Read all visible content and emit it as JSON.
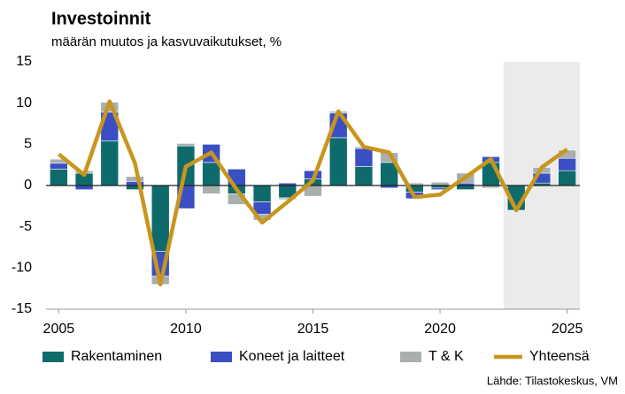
{
  "chart_data": {
    "type": "stacked_bar_line",
    "title": "Investoinnit",
    "subtitle": "määrän muutos ja kasvuvaikutukset, %",
    "source": "Lähde: Tilastokeskus, VM",
    "x": [
      2005,
      2006,
      2007,
      2008,
      2009,
      2010,
      2011,
      2012,
      2013,
      2014,
      2015,
      2016,
      2017,
      2018,
      2019,
      2020,
      2021,
      2022,
      2023,
      2024,
      2025
    ],
    "xlim": [
      2004.5,
      2025.5
    ],
    "xticks": [
      2005,
      2010,
      2015,
      2020,
      2025
    ],
    "ylim": [
      -15,
      15
    ],
    "yticks": [
      -15,
      -10,
      -5,
      0,
      5,
      10,
      15
    ],
    "shaded_region": [
      2022.5,
      2025.5
    ],
    "series": [
      {
        "name": "Rakentaminen",
        "color": "#0f6b6b",
        "kind": "bar",
        "values": [
          2,
          1.5,
          5.4,
          -0.5,
          -8,
          4.8,
          2.8,
          -1,
          -2,
          -1.5,
          0.8,
          5.8,
          2.3,
          2.8,
          -0.8,
          -0.3,
          -0.5,
          2.8,
          -3,
          0.3,
          1.8
        ]
      },
      {
        "name": "Koneet ja laitteet",
        "color": "#3b4fc4",
        "kind": "bar",
        "values": [
          0.7,
          -0.5,
          3.5,
          0.5,
          -3,
          -2.8,
          2.2,
          2,
          -1.5,
          0.3,
          1,
          3,
          2.2,
          -0.3,
          -0.8,
          -0.2,
          0.3,
          0.7,
          0,
          1.2,
          1.5
        ]
      },
      {
        "name": "T & K",
        "color": "#a9aeae",
        "kind": "bar",
        "values": [
          0.5,
          0.3,
          1.2,
          0.6,
          -1,
          0.3,
          -1,
          -1.3,
          -0.7,
          -0.2,
          -1.3,
          0.2,
          0.2,
          1.2,
          0.3,
          0.4,
          1.2,
          -0.3,
          0,
          0.7,
          1
        ]
      },
      {
        "name": "Yhteensä",
        "color": "#c8961e",
        "kind": "line",
        "values": [
          3.8,
          1.3,
          10.2,
          2.7,
          -12,
          2.3,
          4,
          -0.5,
          -4.5,
          -2,
          0.6,
          9,
          4.7,
          4,
          -1.4,
          -1.1,
          1,
          3.2,
          -3,
          2.2,
          4.4
        ]
      }
    ]
  }
}
